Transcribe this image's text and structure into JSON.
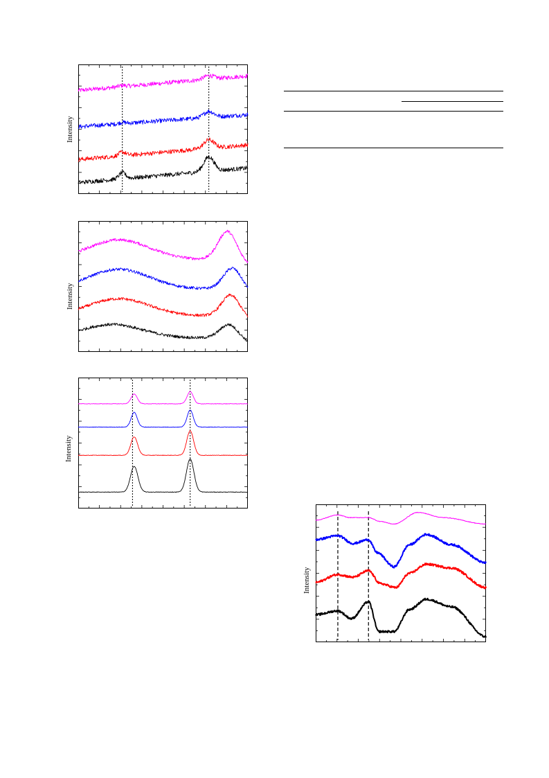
{
  "colors": {
    "magenta": "#ff00ff",
    "blue": "#0000ff",
    "red": "#ff0000",
    "black": "#000000"
  },
  "chart_data": [
    {
      "type": "line",
      "ylabel": "Intensity",
      "grid": false,
      "noise": 0.018,
      "dashed_x": [
        0.26,
        0.77
      ],
      "series": [
        {
          "color": "#ff00ff",
          "baseline": 0.82,
          "slope": 0.12,
          "peaks": [
            [
              0.26,
              0.01,
              0.02
            ],
            [
              0.77,
              0.03,
              0.03
            ]
          ]
        },
        {
          "color": "#0000ff",
          "baseline": 0.52,
          "slope": 0.1,
          "peaks": [
            [
              0.26,
              0.01,
              0.02
            ],
            [
              0.77,
              0.05,
              0.03
            ]
          ]
        },
        {
          "color": "#ff0000",
          "baseline": 0.25,
          "slope": 0.12,
          "peaks": [
            [
              0.26,
              0.03,
              0.02
            ],
            [
              0.77,
              0.07,
              0.03
            ]
          ]
        },
        {
          "color": "#000000",
          "baseline": 0.06,
          "slope": 0.12,
          "peaks": [
            [
              0.26,
              0.05,
              0.02
            ],
            [
              0.77,
              0.12,
              0.03
            ]
          ]
        }
      ]
    },
    {
      "type": "line",
      "ylabel": "Intensity",
      "grid": false,
      "noise": 0.012,
      "dashed_x": [],
      "series": [
        {
          "color": "#ff00ff",
          "hump": [
            0.24,
            0.88,
            0.12
          ],
          "dip": [
            0.75,
            0.72
          ],
          "peak": [
            0.88,
            0.95
          ]
        },
        {
          "color": "#0000ff",
          "hump": [
            0.24,
            0.64,
            0.1
          ],
          "dip": [
            0.68,
            0.48
          ],
          "peak": [
            0.91,
            0.65
          ]
        },
        {
          "color": "#ff0000",
          "hump": [
            0.24,
            0.4,
            0.08
          ],
          "dip": [
            0.72,
            0.26
          ],
          "peak": [
            0.9,
            0.43
          ]
        },
        {
          "color": "#000000",
          "hump": [
            0.2,
            0.19,
            0.06
          ],
          "dip": [
            0.6,
            0.08
          ],
          "peak": [
            0.89,
            0.19
          ]
        }
      ]
    },
    {
      "type": "line",
      "ylabel": "Intensity",
      "grid": false,
      "noise": 0.002,
      "dashed_x": [
        0.32,
        0.66
      ],
      "series": [
        {
          "color": "#ff00ff",
          "baseline": 0.82,
          "peaks": [
            [
              0.33,
              0.08,
              0.018
            ],
            [
              0.66,
              0.1,
              0.018
            ]
          ]
        },
        {
          "color": "#0000ff",
          "baseline": 0.63,
          "peaks": [
            [
              0.33,
              0.12,
              0.018
            ],
            [
              0.66,
              0.14,
              0.018
            ]
          ]
        },
        {
          "color": "#ff0000",
          "baseline": 0.4,
          "peaks": [
            [
              0.33,
              0.15,
              0.02
            ],
            [
              0.66,
              0.2,
              0.02
            ]
          ]
        },
        {
          "color": "#000000",
          "baseline": 0.1,
          "peaks": [
            [
              0.33,
              0.21,
              0.022
            ],
            [
              0.66,
              0.27,
              0.022
            ]
          ]
        }
      ]
    },
    {
      "type": "line",
      "ylabel": "Intensity",
      "grid": false,
      "noise": 0.008,
      "dashed_x": [
        0.13,
        0.31
      ],
      "series": [
        {
          "color": "#ff00ff",
          "thin": true,
          "profile": [
            [
              0.0,
              0.91
            ],
            [
              0.13,
              0.95
            ],
            [
              0.2,
              0.93
            ],
            [
              0.31,
              0.93
            ],
            [
              0.38,
              0.9
            ],
            [
              0.46,
              0.88
            ],
            [
              0.6,
              0.97
            ],
            [
              0.75,
              0.93
            ],
            [
              1.0,
              0.88
            ]
          ]
        },
        {
          "color": "#0000ff",
          "profile": [
            [
              0.0,
              0.76
            ],
            [
              0.13,
              0.79
            ],
            [
              0.22,
              0.73
            ],
            [
              0.31,
              0.76
            ],
            [
              0.36,
              0.66
            ],
            [
              0.46,
              0.55
            ],
            [
              0.55,
              0.72
            ],
            [
              0.65,
              0.8
            ],
            [
              0.8,
              0.72
            ],
            [
              1.0,
              0.58
            ]
          ]
        },
        {
          "color": "#ff0000",
          "profile": [
            [
              0.0,
              0.43
            ],
            [
              0.13,
              0.49
            ],
            [
              0.22,
              0.47
            ],
            [
              0.31,
              0.52
            ],
            [
              0.38,
              0.42
            ],
            [
              0.47,
              0.39
            ],
            [
              0.55,
              0.5
            ],
            [
              0.65,
              0.57
            ],
            [
              0.8,
              0.54
            ],
            [
              1.0,
              0.39
            ]
          ]
        },
        {
          "color": "#000000",
          "profile": [
            [
              0.0,
              0.18
            ],
            [
              0.13,
              0.21
            ],
            [
              0.21,
              0.15
            ],
            [
              0.31,
              0.28
            ],
            [
              0.37,
              0.05
            ],
            [
              0.46,
              0.05
            ],
            [
              0.55,
              0.22
            ],
            [
              0.65,
              0.3
            ],
            [
              0.8,
              0.24
            ],
            [
              1.0,
              0.01
            ]
          ]
        }
      ]
    }
  ]
}
